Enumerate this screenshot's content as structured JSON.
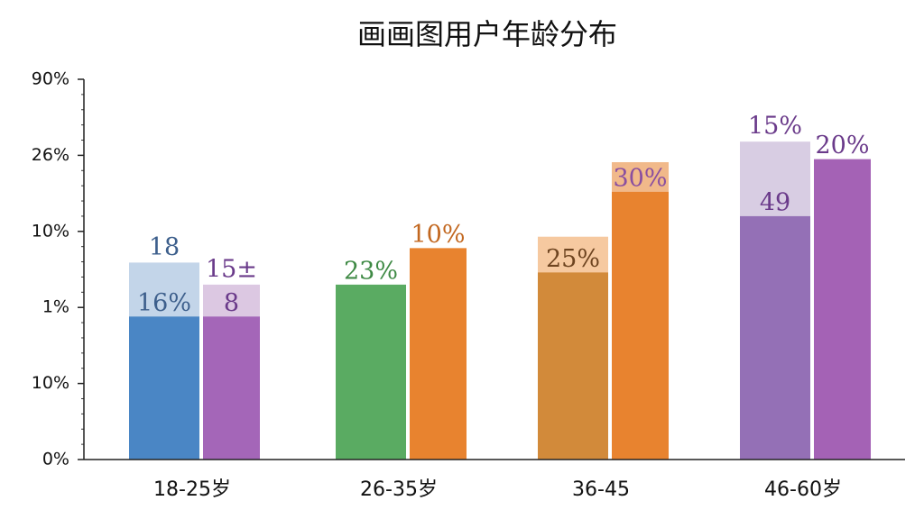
{
  "chart_data": {
    "type": "bar",
    "title": "画画图用户年龄分布",
    "ylim": [
      0,
      5
    ],
    "yticks": [
      {
        "value": 0,
        "label": "0%"
      },
      {
        "value": 1,
        "label": "10%"
      },
      {
        "value": 2,
        "label": "1%"
      },
      {
        "value": 3,
        "label": "10%"
      },
      {
        "value": 4,
        "label": "26%"
      },
      {
        "value": 5,
        "label": "90%"
      }
    ],
    "groups": [
      {
        "category": "18-25岁",
        "bars": [
          {
            "value": 1.88,
            "color": "#4a86c5",
            "label": "16%",
            "label_color": "#3d5f8c",
            "back": {
              "value": 2.59,
              "color": "#c3d5e9",
              "label": "18",
              "label_color": "#3d5f8c"
            }
          },
          {
            "value": 1.88,
            "color": "#a466b8",
            "label": "8",
            "label_color": "#6a3a8a",
            "back": {
              "value": 2.3,
              "color": "#dcc8e2",
              "label": "15±",
              "label_color": "#6a3a8a"
            }
          }
        ]
      },
      {
        "category": "26-35岁",
        "bars": [
          {
            "value": 2.3,
            "color": "#5aab62",
            "label": "23%",
            "label_color": "#3f8a45"
          },
          {
            "value": 2.78,
            "color": "#e8832f",
            "label": "10%",
            "label_color": "#c2671f"
          }
        ]
      },
      {
        "category": "36-45",
        "bars": [
          {
            "value": 2.46,
            "color": "#d28a3a",
            "label": "25%",
            "label_color": "#6e4420",
            "back": {
              "value": 2.93,
              "color": "#f6c9a0"
            }
          },
          {
            "value": 3.52,
            "color": "#e8832f",
            "label": "30%",
            "label_color": "#8a4fa0",
            "back": {
              "value": 3.91,
              "color": "#f1b98a"
            }
          }
        ]
      },
      {
        "category": "46-60岁",
        "bars": [
          {
            "value": 3.2,
            "color": "#9470b6",
            "label": "49",
            "label_color": "#6a3a8a",
            "back": {
              "value": 4.18,
              "color": "#d8cde3",
              "label": "15%",
              "label_color": "#6a3a8a"
            }
          },
          {
            "value": 3.95,
            "color": "#a462b5",
            "label": "20%",
            "label_color": "#6a3a8a"
          }
        ]
      }
    ]
  }
}
